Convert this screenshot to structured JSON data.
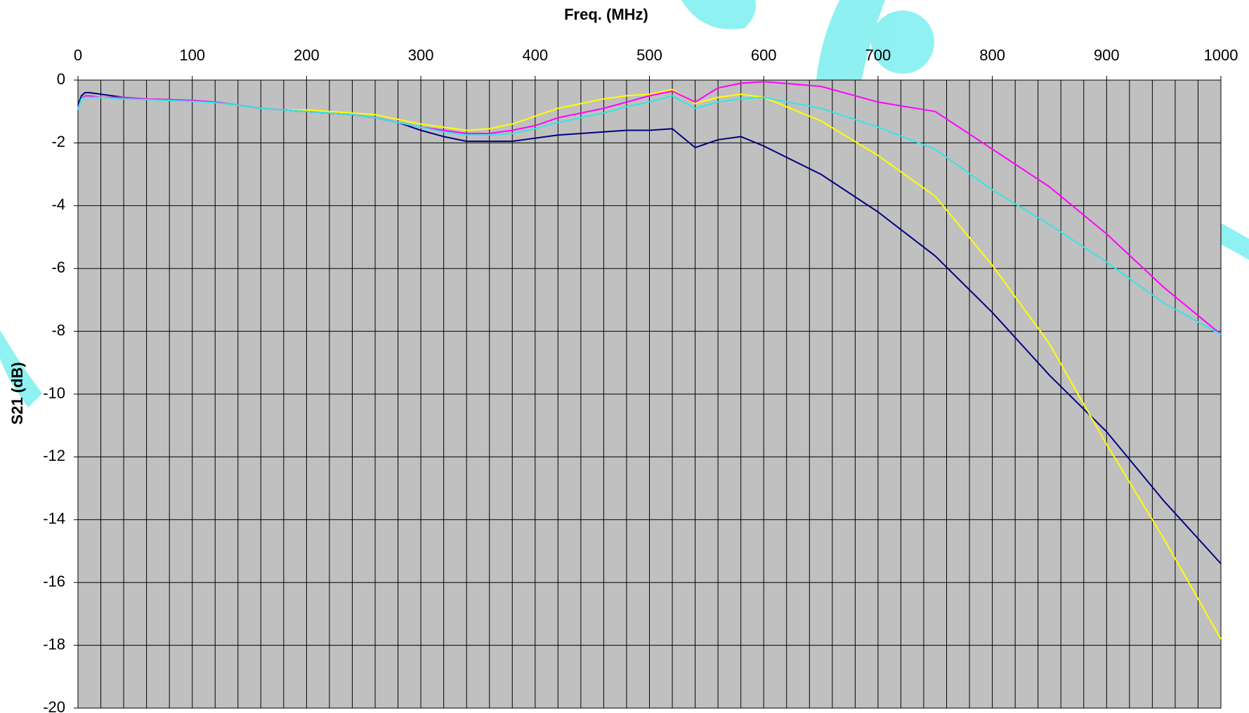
{
  "chart_data": {
    "type": "line",
    "title": "",
    "xlabel": "Freq. (MHz)",
    "ylabel": "S21 (dB)",
    "xlim": [
      0,
      1000
    ],
    "ylim": [
      -20,
      0
    ],
    "x_ticks": [
      0,
      100,
      200,
      300,
      400,
      500,
      600,
      700,
      800,
      900,
      1000
    ],
    "y_ticks": [
      0,
      -2,
      -4,
      -6,
      -8,
      -10,
      -12,
      -14,
      -16,
      -18,
      -20
    ],
    "x_axis_position": "top",
    "grid": true,
    "x_minor_grid_step": 20,
    "y_grid_step": 2,
    "plot_background": "#c0c0c0",
    "legend": "none",
    "series": [
      {
        "color": "#000080",
        "x": [
          0,
          3,
          6,
          10,
          20,
          40,
          60,
          80,
          100,
          120,
          140,
          160,
          180,
          200,
          220,
          240,
          260,
          280,
          300,
          320,
          340,
          360,
          380,
          400,
          420,
          440,
          460,
          480,
          500,
          520,
          540,
          560,
          580,
          600,
          650,
          700,
          750,
          800,
          850,
          900,
          950,
          1000
        ],
        "y": [
          -0.8,
          -0.5,
          -0.4,
          -0.4,
          -0.45,
          -0.55,
          -0.6,
          -0.62,
          -0.65,
          -0.7,
          -0.8,
          -0.9,
          -0.95,
          -1.0,
          -1.05,
          -1.1,
          -1.2,
          -1.35,
          -1.6,
          -1.8,
          -1.95,
          -1.95,
          -1.95,
          -1.85,
          -1.75,
          -1.7,
          -1.65,
          -1.6,
          -1.6,
          -1.55,
          -2.15,
          -1.9,
          -1.8,
          -2.1,
          -3.0,
          -4.2,
          -5.6,
          -7.4,
          -9.4,
          -11.2,
          -13.4,
          -15.4
        ]
      },
      {
        "color": "#ffff00",
        "x": [
          0,
          3,
          6,
          10,
          20,
          40,
          60,
          80,
          100,
          120,
          140,
          160,
          180,
          200,
          220,
          240,
          260,
          280,
          300,
          320,
          340,
          360,
          380,
          400,
          420,
          440,
          460,
          480,
          500,
          520,
          540,
          560,
          580,
          600,
          650,
          700,
          750,
          800,
          850,
          900,
          950,
          1000
        ],
        "y": [
          -0.9,
          -0.6,
          -0.5,
          -0.5,
          -0.55,
          -0.55,
          -0.6,
          -0.62,
          -0.65,
          -0.7,
          -0.8,
          -0.9,
          -0.95,
          -0.95,
          -1.0,
          -1.05,
          -1.1,
          -1.25,
          -1.4,
          -1.5,
          -1.6,
          -1.55,
          -1.4,
          -1.15,
          -0.9,
          -0.75,
          -0.6,
          -0.5,
          -0.45,
          -0.3,
          -0.75,
          -0.55,
          -0.45,
          -0.55,
          -1.3,
          -2.4,
          -3.7,
          -5.9,
          -8.4,
          -11.6,
          -14.6,
          -17.8
        ]
      },
      {
        "color": "#ff00ff",
        "x": [
          0,
          3,
          6,
          10,
          20,
          40,
          60,
          80,
          100,
          120,
          140,
          160,
          180,
          200,
          220,
          240,
          260,
          280,
          300,
          320,
          340,
          360,
          380,
          400,
          420,
          440,
          460,
          480,
          500,
          520,
          540,
          560,
          580,
          600,
          650,
          700,
          750,
          800,
          850,
          900,
          950,
          1000
        ],
        "y": [
          -0.9,
          -0.6,
          -0.5,
          -0.5,
          -0.55,
          -0.55,
          -0.6,
          -0.62,
          -0.65,
          -0.7,
          -0.8,
          -0.9,
          -0.95,
          -1.0,
          -1.05,
          -1.1,
          -1.2,
          -1.35,
          -1.5,
          -1.6,
          -1.7,
          -1.7,
          -1.6,
          -1.45,
          -1.2,
          -1.05,
          -0.9,
          -0.7,
          -0.5,
          -0.35,
          -0.7,
          -0.25,
          -0.1,
          -0.05,
          -0.2,
          -0.7,
          -1.0,
          -2.2,
          -3.4,
          -4.9,
          -6.6,
          -8.1
        ]
      },
      {
        "color": "#33e5e5",
        "x": [
          0,
          3,
          6,
          10,
          20,
          40,
          60,
          80,
          100,
          120,
          140,
          160,
          180,
          200,
          220,
          240,
          260,
          280,
          300,
          320,
          340,
          360,
          380,
          400,
          420,
          440,
          460,
          480,
          500,
          520,
          540,
          560,
          580,
          600,
          650,
          700,
          750,
          800,
          850,
          900,
          950,
          1000
        ],
        "y": [
          -0.95,
          -0.6,
          -0.55,
          -0.55,
          -0.55,
          -0.6,
          -0.62,
          -0.65,
          -0.68,
          -0.72,
          -0.8,
          -0.9,
          -0.95,
          -1.0,
          -1.05,
          -1.1,
          -1.2,
          -1.35,
          -1.5,
          -1.65,
          -1.75,
          -1.75,
          -1.7,
          -1.55,
          -1.35,
          -1.2,
          -1.05,
          -0.85,
          -0.7,
          -0.5,
          -0.9,
          -0.7,
          -0.6,
          -0.55,
          -0.9,
          -1.5,
          -2.2,
          -3.5,
          -4.6,
          -5.8,
          -7.1,
          -8.1
        ]
      }
    ]
  },
  "watermark": {
    "color": "#33e5e5"
  }
}
